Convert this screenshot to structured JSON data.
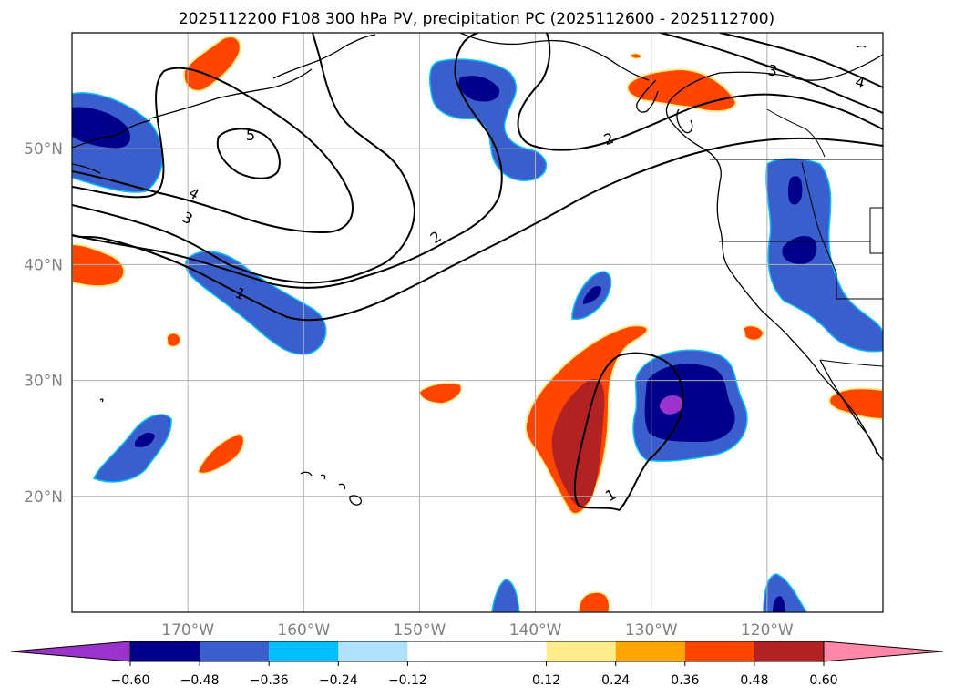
{
  "chart_data": {
    "type": "heatmap",
    "title": "2025112200 F108 300 hPa PV, precipitation PC (2025112600 - 2025112700)",
    "x_ticks": [
      "170°W",
      "160°W",
      "150°W",
      "140°W",
      "130°W",
      "120°W"
    ],
    "x_tick_values": [
      -170,
      -160,
      -150,
      -140,
      -130,
      -120
    ],
    "y_ticks": [
      "50°N",
      "40°N",
      "30°N",
      "20°N"
    ],
    "y_tick_values": [
      50,
      40,
      30,
      20
    ],
    "xlim": [
      -180,
      -110
    ],
    "ylim": [
      10,
      60
    ],
    "grid": true,
    "colorbar": {
      "orientation": "horizontal",
      "extend": "both",
      "ticks": [
        "−0.60",
        "−0.48",
        "−0.36",
        "−0.24",
        "−0.12",
        "0.12",
        "0.24",
        "0.36",
        "0.48",
        "0.60"
      ],
      "bounds": [
        -0.6,
        -0.48,
        -0.36,
        -0.24,
        -0.12,
        0.12,
        0.24,
        0.36,
        0.48,
        0.6
      ],
      "colors": [
        "#9933cc",
        "#00008b",
        "#3a5fcd",
        "#00bfff",
        "#b0e2ff",
        "#ffffff",
        "#ffec8b",
        "#ffa500",
        "#ff4500",
        "#b22222",
        "#ff88aa"
      ]
    },
    "contour_series": [
      {
        "label": "1",
        "level": 1
      },
      {
        "label": "2",
        "level": 2
      },
      {
        "label": "3",
        "level": 3
      },
      {
        "label": "4",
        "level": 4
      },
      {
        "label": "5",
        "level": 5
      }
    ],
    "contour_label_text": [
      "5",
      "4",
      "3",
      "2",
      "2",
      "1",
      "1",
      "3",
      "4"
    ]
  }
}
